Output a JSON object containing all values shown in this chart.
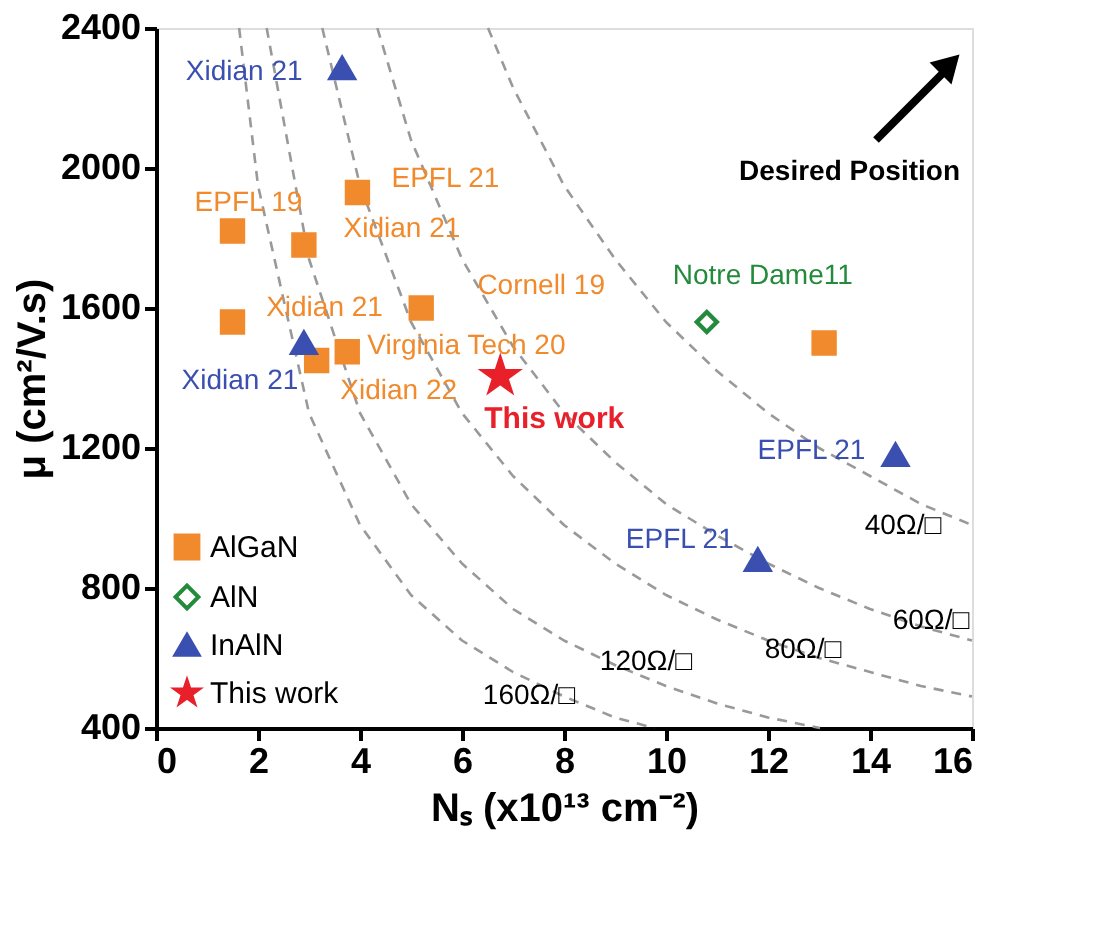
{
  "chart_data": {
    "type": "scatter",
    "xlabel": "Nₛ (x10¹³ cm⁻²)",
    "ylabel": "μ (cm²/V.s)",
    "xlim": [
      0,
      16
    ],
    "ylim": [
      400,
      2400
    ],
    "xticks": [
      0,
      2,
      4,
      6,
      8,
      10,
      12,
      14,
      16
    ],
    "yticks": [
      400,
      800,
      {
        "value": 1200,
        "label": "1200"
      },
      {
        "value": 1600,
        "label": "1600"
      },
      {
        "value": 2000,
        "label": "2000"
      },
      {
        "value": 2400,
        "label": "2400"
      }
    ],
    "grid": false,
    "legend": "bottom left",
    "series": [
      {
        "name": "AlGaN",
        "marker": "square",
        "color": "#f08a2c",
        "x": [
          1.5,
          2.9,
          3.95,
          1.5,
          5.2,
          3.75,
          3.15,
          13.1
        ],
        "values": [
          1820,
          1780,
          1930,
          1560,
          1600,
          1475,
          1450,
          1500
        ],
        "value_labels": [
          "EPFL 19",
          "Xidian 21",
          "EPFL 21",
          "Xidian 21",
          "Cornell 19",
          "Virginia Tech 20",
          "Xidian 22",
          null
        ]
      },
      {
        "name": "AlN",
        "marker": "diamond",
        "color": "#248a3c",
        "x": [
          10.8
        ],
        "values": [
          1560
        ],
        "value_labels": [
          "Notre Dame11"
        ]
      },
      {
        "name": "InAlN",
        "marker": "triangle",
        "color": "#3a4fb0",
        "x": [
          3.65,
          2.9,
          14.5,
          11.8
        ],
        "values": [
          2285,
          1500,
          1180,
          880
        ],
        "value_labels": [
          "Xidian 21",
          "Xidian 21",
          "EPFL 21",
          "EPFL 21"
        ]
      },
      {
        "name": "This work",
        "marker": "star",
        "color": "#e8202a",
        "x": [
          6.75
        ],
        "values": [
          1405
        ],
        "value_labels": [
          "This work"
        ]
      },
      {
        "name": "40Ω/□",
        "type": "line",
        "color": "#999999",
        "line_style": "dashed",
        "x": [
          6.51,
          7,
          8,
          9,
          10,
          11,
          12,
          13,
          14,
          15,
          16
        ],
        "values": [
          2400,
          2230,
          1950,
          1740,
          1560,
          1420,
          1300,
          1200,
          1120,
          1040,
          980
        ]
      },
      {
        "name": "60Ω/□",
        "type": "line",
        "color": "#999999",
        "line_style": "dashed",
        "x": [
          4.34,
          5,
          6,
          7,
          8,
          9,
          10,
          11,
          12,
          13,
          14,
          15,
          16
        ],
        "values": [
          2400,
          2080,
          1740,
          1490,
          1300,
          1160,
          1040,
          950,
          870,
          800,
          740,
          690,
          650
        ]
      },
      {
        "name": "80Ω/□",
        "type": "line",
        "color": "#999999",
        "line_style": "dashed",
        "x": [
          3.26,
          4,
          5,
          6,
          7,
          8,
          9,
          10,
          11,
          12,
          13,
          14,
          15,
          16
        ],
        "values": [
          2400,
          1950,
          1560,
          1300,
          1120,
          980,
          870,
          780,
          710,
          650,
          600,
          560,
          520,
          490
        ]
      },
      {
        "name": "120Ω/□",
        "type": "line",
        "color": "#999999",
        "line_style": "dashed",
        "x": [
          2.17,
          3,
          4,
          5,
          6,
          7,
          8,
          9,
          10,
          11,
          12,
          13.02
        ],
        "values": [
          2400,
          1740,
          1300,
          1040,
          870,
          740,
          650,
          580,
          520,
          470,
          430,
          400
        ]
      },
      {
        "name": "160Ω/□",
        "type": "line",
        "color": "#999999",
        "line_style": "dashed",
        "x": [
          1.63,
          2,
          3,
          4,
          5,
          6,
          7,
          8,
          9,
          9.77
        ],
        "values": [
          2400,
          1950,
          1300,
          980,
          780,
          650,
          560,
          490,
          430,
          400
        ]
      }
    ],
    "annotations": [
      "Desired Position"
    ]
  }
}
